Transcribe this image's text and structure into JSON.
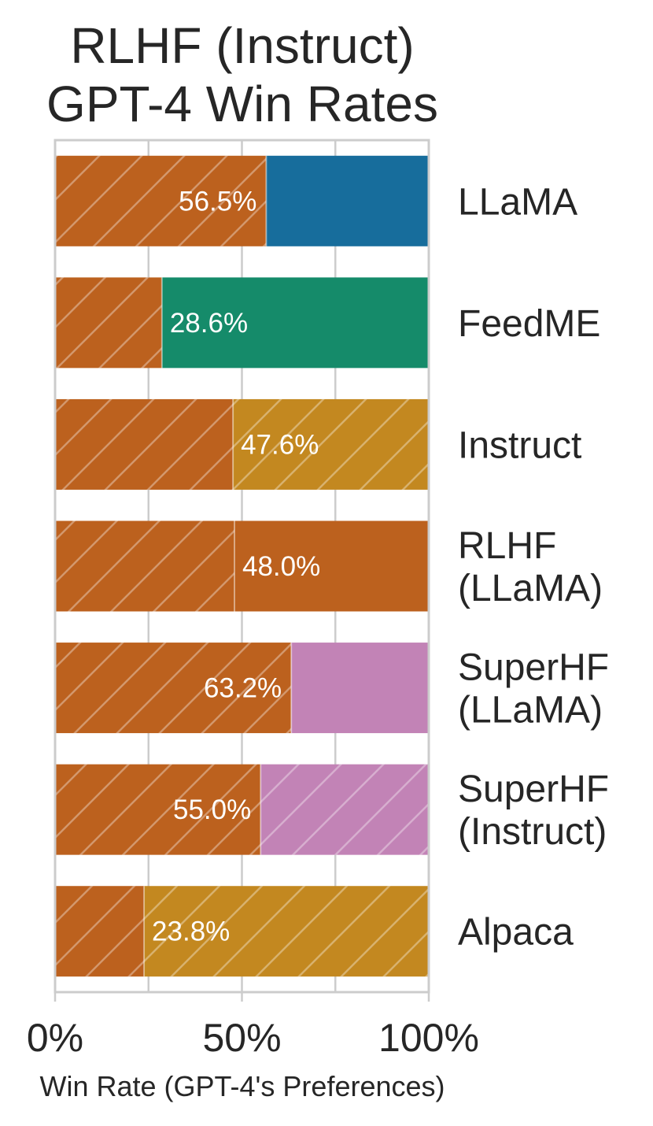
{
  "chart_data": {
    "type": "bar",
    "orientation": "horizontal",
    "stacked": true,
    "title": [
      "RLHF (Instruct)",
      "GPT-4 Win Rates"
    ],
    "xlabel": "Win Rate (GPT-4's Preferences)",
    "ylabel": "",
    "xlim": [
      0,
      100
    ],
    "x_ticks": [
      0,
      50,
      100
    ],
    "x_tick_labels": [
      "0%",
      "50%",
      "100%"
    ],
    "grid": true,
    "reference_color": "#bc611e",
    "categories": [
      {
        "lines": [
          "LLaMA"
        ],
        "value": 56.5,
        "label": "56.5%",
        "color": "#176d9c",
        "hatched": false
      },
      {
        "lines": [
          "FeedME"
        ],
        "value": 28.6,
        "label": "28.6%",
        "color": "#158b6a",
        "hatched": false
      },
      {
        "lines": [
          "Instruct"
        ],
        "value": 47.6,
        "label": "47.6%",
        "color": "#c38820",
        "hatched": true
      },
      {
        "lines": [
          "RLHF",
          "(LLaMA)"
        ],
        "value": 48.0,
        "label": "48.0%",
        "color": "#bc611e",
        "hatched": false
      },
      {
        "lines": [
          "SuperHF",
          "(LLaMA)"
        ],
        "value": 63.2,
        "label": "63.2%",
        "color": "#c283b6",
        "hatched": false
      },
      {
        "lines": [
          "SuperHF",
          "(Instruct)"
        ],
        "value": 55.0,
        "label": "55.0%",
        "color": "#c283b6",
        "hatched": true
      },
      {
        "lines": [
          "Alpaca"
        ],
        "value": 23.8,
        "label": "23.8%",
        "color": "#c38820",
        "hatched": true
      }
    ]
  }
}
